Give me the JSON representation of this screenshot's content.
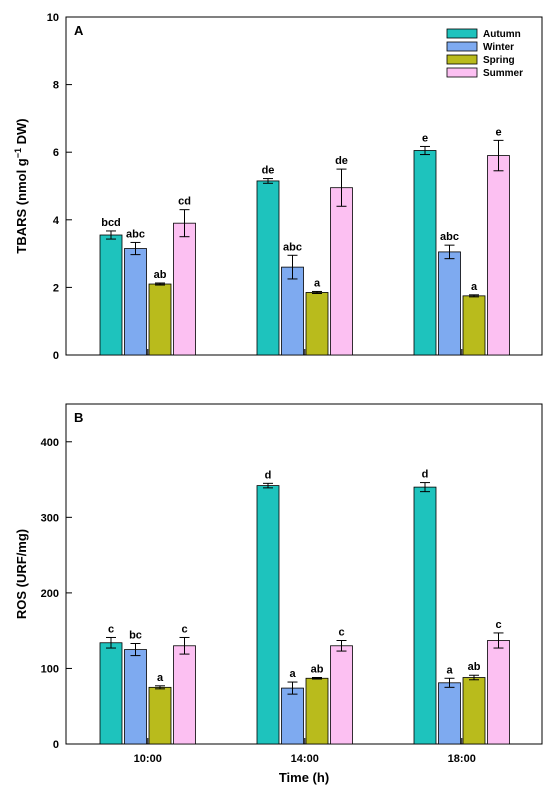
{
  "chart_data": [
    {
      "type": "bar",
      "panel_label": "A",
      "categories": [
        "10:00",
        "14:00",
        "18:00"
      ],
      "series": [
        {
          "name": "Autumn",
          "color": "#1ec3bd",
          "values": [
            3.55,
            5.15,
            6.05
          ],
          "errors": [
            0.12,
            0.07,
            0.12
          ],
          "labels": [
            "bcd",
            "de",
            "e"
          ]
        },
        {
          "name": "Winter",
          "color": "#7eaaf0",
          "values": [
            3.15,
            2.6,
            3.05
          ],
          "errors": [
            0.18,
            0.35,
            0.2
          ],
          "labels": [
            "abc",
            "abc",
            "abc"
          ]
        },
        {
          "name": "Spring",
          "color": "#b9bb1c",
          "values": [
            2.1,
            1.85,
            1.75
          ],
          "errors": [
            0.03,
            0.03,
            0.03
          ],
          "labels": [
            "ab",
            "a",
            "a"
          ]
        },
        {
          "name": "Summer",
          "color": "#fcc0f2",
          "values": [
            3.9,
            4.95,
            5.9
          ],
          "errors": [
            0.4,
            0.55,
            0.45
          ],
          "labels": [
            "cd",
            "de",
            "e"
          ]
        }
      ],
      "xlabel": "",
      "ylabel_main": "TBARS (nmol g",
      "ylabel_sup": "−1",
      "ylabel_end": " DW)",
      "ylim": [
        0,
        10
      ],
      "yticks": [
        "0",
        "2",
        "4",
        "6",
        "8",
        "10"
      ],
      "legend": "top-right"
    },
    {
      "type": "bar",
      "panel_label": "B",
      "categories": [
        "10:00",
        "14:00",
        "18:00"
      ],
      "series": [
        {
          "name": "Autumn",
          "color": "#1ec3bd",
          "values": [
            134,
            342,
            340
          ],
          "errors": [
            7,
            3,
            6
          ],
          "labels": [
            "c",
            "d",
            "d"
          ]
        },
        {
          "name": "Winter",
          "color": "#7eaaf0",
          "values": [
            125,
            74,
            81
          ],
          "errors": [
            8,
            8,
            6
          ],
          "labels": [
            "bc",
            "a",
            "a"
          ]
        },
        {
          "name": "Spring",
          "color": "#b9bb1c",
          "values": [
            75,
            87,
            88
          ],
          "errors": [
            2,
            1,
            3
          ],
          "labels": [
            "a",
            "ab",
            "ab"
          ]
        },
        {
          "name": "Summer",
          "color": "#fcc0f2",
          "values": [
            130,
            130,
            137
          ],
          "errors": [
            11,
            7,
            10
          ],
          "labels": [
            "c",
            "c",
            "c"
          ]
        }
      ],
      "xlabel": "Time (h)",
      "ylabel": "ROS (URF/mg)",
      "ylim": [
        0,
        450
      ],
      "yticks": [
        "0",
        "100",
        "200",
        "300",
        "400"
      ]
    }
  ]
}
